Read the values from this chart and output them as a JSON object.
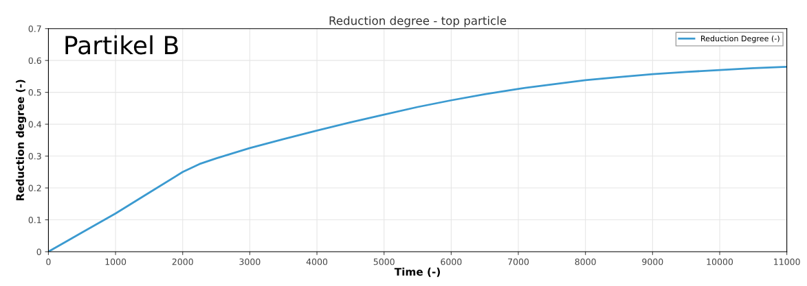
{
  "chart_data": {
    "type": "line",
    "title": "Reduction degree - top particle",
    "xlabel": "Time (-)",
    "ylabel": "Reduction degree (-)",
    "annotations": [
      "Partikel B"
    ],
    "x": [
      0,
      250,
      500,
      1000,
      1500,
      2000,
      2250,
      2500,
      3000,
      3500,
      4000,
      4500,
      5000,
      5500,
      6000,
      6500,
      7000,
      7500,
      8000,
      8500,
      9000,
      9500,
      10000,
      10500,
      11000
    ],
    "series": [
      {
        "name": "Reduction Degree (-)",
        "color": "#3b9ad0",
        "values": [
          0,
          0.03,
          0.06,
          0.12,
          0.185,
          0.25,
          0.275,
          0.293,
          0.325,
          0.353,
          0.38,
          0.406,
          0.43,
          0.454,
          0.475,
          0.494,
          0.511,
          0.525,
          0.538,
          0.548,
          0.557,
          0.564,
          0.57,
          0.576,
          0.58
        ]
      }
    ],
    "xlim": [
      0,
      11000
    ],
    "xticks": [
      0,
      1000,
      2000,
      3000,
      4000,
      5000,
      6000,
      7000,
      8000,
      9000,
      10000,
      11000
    ],
    "ylim": [
      0,
      0.7
    ],
    "yticks": [
      0,
      0.1,
      0.2,
      0.3,
      0.4,
      0.5,
      0.6,
      0.7
    ],
    "grid": true,
    "legend": "top right",
    "marker": "none",
    "line_style": "solid"
  }
}
